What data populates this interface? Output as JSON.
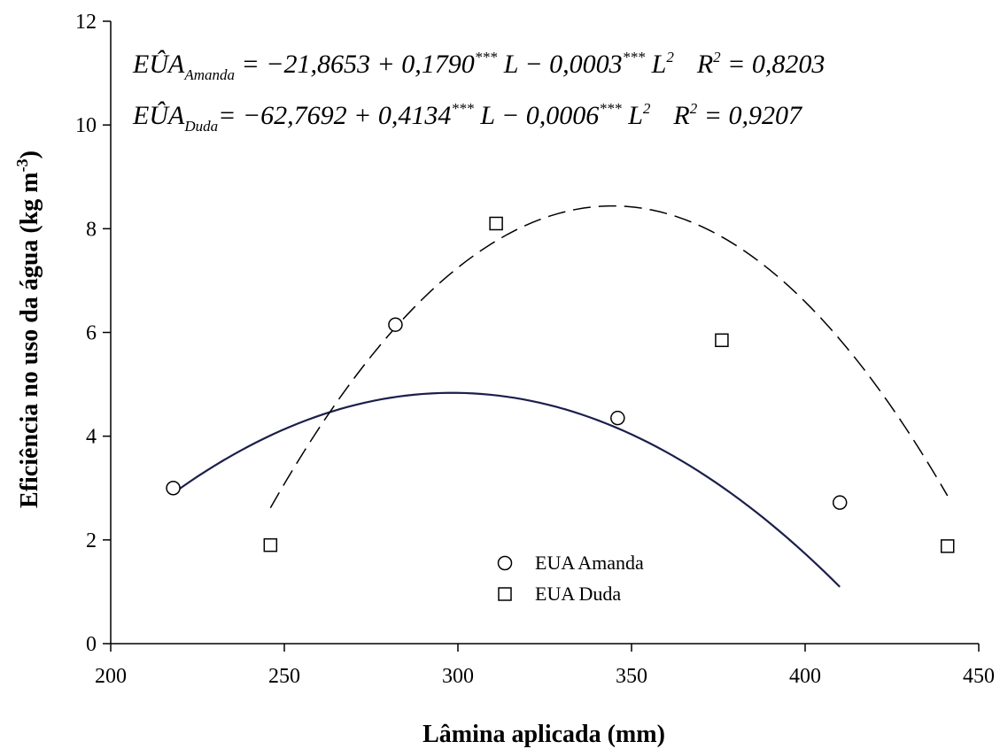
{
  "chart_data": {
    "type": "scatter",
    "xlabel": "Lâmina aplicada (mm)",
    "ylabel": "Eficiência no uso da água (kg m",
    "ylabel_sup": "-3",
    "ylabel_close": ")",
    "xlim": [
      200,
      450
    ],
    "ylim": [
      0,
      12
    ],
    "xticks": [
      200,
      250,
      300,
      350,
      400,
      450
    ],
    "yticks": [
      0,
      2,
      4,
      6,
      8,
      10,
      12
    ],
    "grid": false,
    "legend_position": "bottom-center",
    "series": [
      {
        "name": "EUA Amanda",
        "marker": "circle",
        "x": [
          218,
          282,
          346,
          410
        ],
        "y": [
          3.0,
          6.15,
          4.35,
          2.72
        ],
        "fit": {
          "line_style": "solid",
          "color": "#1b1f4a",
          "intercept": -21.8653,
          "linear": 0.179,
          "quadratic": -0.0003,
          "x_range": [
            218,
            410
          ]
        }
      },
      {
        "name": "EUA Duda",
        "marker": "square",
        "x": [
          246,
          311,
          376,
          441
        ],
        "y": [
          1.9,
          8.1,
          5.85,
          1.88
        ],
        "fit": {
          "line_style": "dashed",
          "color": "#000000",
          "intercept": -62.7692,
          "linear": 0.4134,
          "quadratic": -0.0006,
          "x_range": [
            246,
            441
          ]
        }
      }
    ],
    "equations": [
      {
        "lhs": "EÛA",
        "sub": "Amanda",
        "rhs1": " = −21,8653 + 0,1790",
        "sup1": "***",
        "rhs2": " L − 0,0003",
        "sup2": "***",
        "rhs3": " L",
        "sup3": "2",
        "r2_label": "R",
        "r2_sup": "2",
        "r2_value": " = 0,8203"
      },
      {
        "lhs": "EÛA",
        "sub": "Duda",
        "rhs1": "= −62,7692 + 0,4134",
        "sup1": "***",
        "rhs2": " L − 0,0006",
        "sup2": "***",
        "rhs3": " L",
        "sup3": "2",
        "r2_label": "R",
        "r2_sup": "2",
        "r2_value": " = 0,9207"
      }
    ]
  }
}
